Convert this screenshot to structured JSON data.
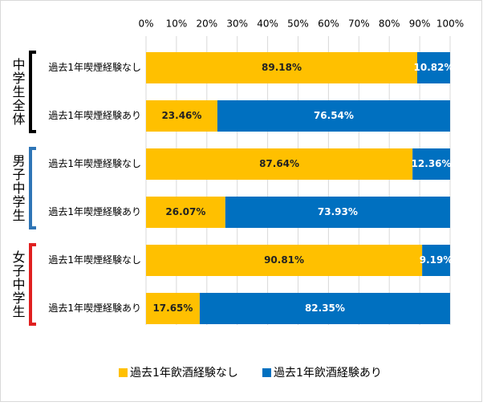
{
  "chart_data": {
    "type": "stacked-bar-horizontal",
    "categories": [
      "過去1年喫煙経験なし",
      "過去1年喫煙経験あり",
      "過去1年喫煙経験なし",
      "過去1年喫煙経験あり",
      "過去1年喫煙経験なし",
      "過去1年喫煙経験あり"
    ],
    "groups": [
      {
        "name": "中学生全体",
        "color": "#000000"
      },
      {
        "name": "男子中学生",
        "color": "#2e75b6"
      },
      {
        "name": "女子中学生",
        "color": "#e02020"
      }
    ],
    "series": [
      {
        "name": "過去1年飲酒経験なし",
        "color": "#ffc000",
        "values": [
          89.18,
          23.46,
          87.64,
          26.07,
          90.81,
          17.65
        ],
        "value_labels": [
          "89.18%",
          "23.46%",
          "87.64%",
          "26.07%",
          "90.81%",
          "17.65%"
        ]
      },
      {
        "name": "過去1年飲酒経験あり",
        "color": "#0070c0",
        "values": [
          10.82,
          76.54,
          12.36,
          73.93,
          9.19,
          82.35
        ],
        "value_labels": [
          "10.82%",
          "76.54%",
          "12.36%",
          "73.93%",
          "9.19%",
          "82.35%"
        ]
      }
    ],
    "xlim": [
      0,
      100
    ],
    "xticks": [
      {
        "value": 0,
        "label": "0%"
      },
      {
        "value": 10,
        "label": "10%"
      },
      {
        "value": 20,
        "label": "20%"
      },
      {
        "value": 30,
        "label": "30%"
      },
      {
        "value": 40,
        "label": "40%"
      },
      {
        "value": 50,
        "label": "50%"
      },
      {
        "value": 60,
        "label": "60%"
      },
      {
        "value": 70,
        "label": "70%"
      },
      {
        "value": 80,
        "label": "80%"
      },
      {
        "value": 90,
        "label": "90%"
      },
      {
        "value": 100,
        "label": "100%"
      }
    ],
    "grid": true
  }
}
